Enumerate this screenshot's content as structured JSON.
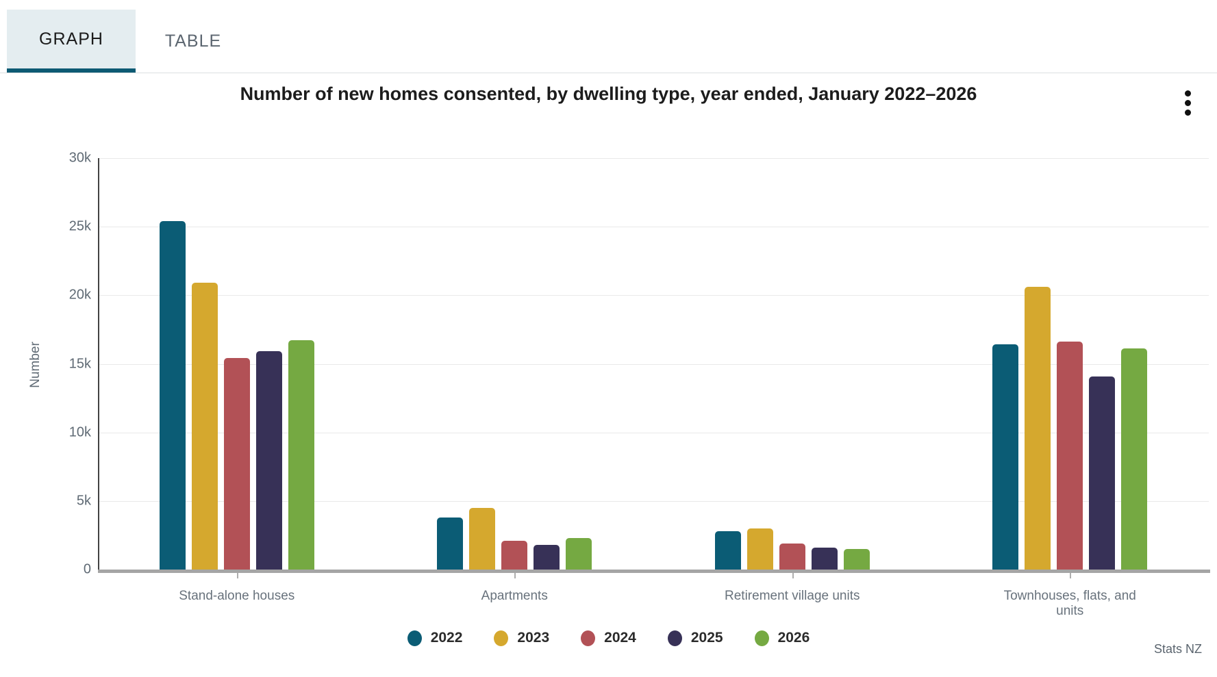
{
  "tabs": [
    {
      "label": "GRAPH",
      "active": true
    },
    {
      "label": "TABLE",
      "active": false
    }
  ],
  "header": {
    "title": "Number of new homes consented, by dwelling type, year ended, January 2022–2026",
    "menu_icon": "kebab-menu-icon"
  },
  "source": "Stats NZ",
  "colors": {
    "tab_active_bg": "#e4edf0",
    "tab_underline": "#0d5a73",
    "axis_line": "#434343",
    "baseline": "#a5a5a5",
    "gridline": "#e9e9e9"
  },
  "chart_data": {
    "type": "bar",
    "title": "Number of new homes consented, by dwelling type, year ended, January 2022–2026",
    "xlabel": "",
    "ylabel": "Number",
    "ylim": [
      0,
      30000
    ],
    "ytick_step": 5000,
    "ytick_labels": [
      "0",
      "5k",
      "10k",
      "15k",
      "20k",
      "25k",
      "30k"
    ],
    "grid": true,
    "legend_position": "bottom",
    "categories": [
      "Stand-alone houses",
      "Apartments",
      "Retirement village units",
      "Townhouses, flats, and units"
    ],
    "series": [
      {
        "name": "2022",
        "color": "#0b5c75",
        "values": [
          25400,
          3800,
          2800,
          16400
        ]
      },
      {
        "name": "2023",
        "color": "#d5a82e",
        "values": [
          20900,
          4500,
          3000,
          20600
        ]
      },
      {
        "name": "2024",
        "color": "#b25156",
        "values": [
          15400,
          2100,
          1900,
          16600
        ]
      },
      {
        "name": "2025",
        "color": "#373157",
        "values": [
          15900,
          1800,
          1600,
          14100
        ]
      },
      {
        "name": "2026",
        "color": "#75a942",
        "values": [
          16700,
          2300,
          1500,
          16100
        ]
      }
    ]
  }
}
